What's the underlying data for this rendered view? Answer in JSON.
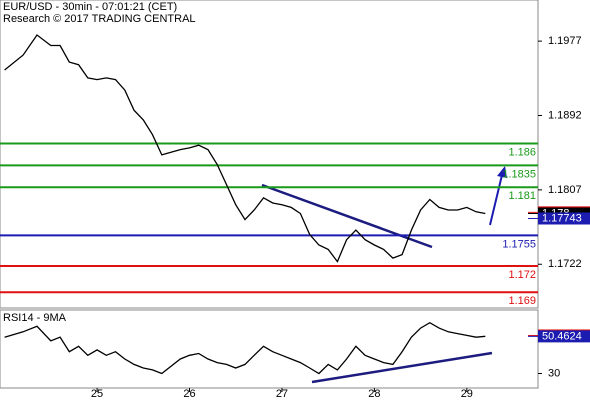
{
  "chart_data": [
    {
      "type": "line",
      "title": "EUR/USD - 30min - 07:01:21 (CET)",
      "subtitle": "Research © 2017 TRADING CENTRAL",
      "xlim": [
        23.95,
        29.77
      ],
      "ylim": [
        1.1672,
        1.2024
      ],
      "yticks": [
        1.1977,
        1.1892,
        1.1807,
        1.1722
      ],
      "x": [
        24.0,
        24.2,
        24.35,
        24.5,
        24.6,
        24.7,
        24.8,
        24.9,
        25.0,
        25.1,
        25.2,
        25.3,
        25.4,
        25.5,
        25.6,
        25.7,
        25.8,
        25.9,
        26.0,
        26.1,
        26.2,
        26.3,
        26.4,
        26.5,
        26.6,
        26.7,
        26.8,
        26.9,
        27.0,
        27.1,
        27.2,
        27.3,
        27.4,
        27.5,
        27.6,
        27.7,
        27.8,
        27.9,
        28.0,
        28.1,
        28.2,
        28.3,
        28.4,
        28.5,
        28.6,
        28.7,
        28.8,
        28.9,
        29.0,
        29.1,
        29.2
      ],
      "series": [
        {
          "color": "#000000",
          "values": [
            1.1944,
            1.1961,
            1.1984,
            1.1972,
            1.1972,
            1.1953,
            1.195,
            1.1935,
            1.1933,
            1.1935,
            1.1933,
            1.1921,
            1.1898,
            1.1887,
            1.187,
            1.1847,
            1.185,
            1.1853,
            1.1855,
            1.1858,
            1.1853,
            1.1836,
            1.1813,
            1.179,
            1.1773,
            1.1784,
            1.1798,
            1.1792,
            1.179,
            1.1787,
            1.178,
            1.1756,
            1.1744,
            1.1739,
            1.1725,
            1.175,
            1.1761,
            1.175,
            1.1744,
            1.1739,
            1.1729,
            1.1733,
            1.1761,
            1.1784,
            1.1796,
            1.1787,
            1.1784,
            1.1784,
            1.1787,
            1.1782,
            1.178
          ]
        }
      ],
      "levels": [
        {
          "value": 1.186,
          "color": "#1a9a1a"
        },
        {
          "value": 1.1835,
          "color": "#1a9a1a"
        },
        {
          "value": 1.181,
          "color": "#1a9a1a"
        },
        {
          "value": 1.1755,
          "color": "#1c1cb0"
        },
        {
          "value": 1.172,
          "color": "#e01010"
        },
        {
          "value": 1.169,
          "color": "#e01010"
        }
      ],
      "tags": [
        {
          "value": 1.17813,
          "color": "#e01010"
        },
        {
          "value": 1.178,
          "color": "#000000"
        },
        {
          "value": 1.17743,
          "color": "#1c1cb0"
        }
      ]
    },
    {
      "type": "line",
      "title": "RSI14 - 9MA",
      "xlim": [
        23.95,
        29.77
      ],
      "ylim": [
        22,
        65
      ],
      "yticks": [
        30
      ],
      "xticks": [
        25,
        26,
        27,
        28,
        29
      ],
      "x": [
        24.0,
        24.2,
        24.35,
        24.5,
        24.6,
        24.7,
        24.8,
        24.9,
        25.0,
        25.1,
        25.2,
        25.3,
        25.4,
        25.5,
        25.6,
        25.7,
        25.8,
        25.9,
        26.0,
        26.1,
        26.2,
        26.3,
        26.4,
        26.5,
        26.6,
        26.7,
        26.8,
        26.9,
        27.0,
        27.1,
        27.2,
        27.3,
        27.4,
        27.5,
        27.6,
        27.7,
        27.8,
        27.9,
        28.0,
        28.1,
        28.2,
        28.3,
        28.4,
        28.5,
        28.6,
        28.7,
        28.8,
        28.9,
        29.0,
        29.1,
        29.2
      ],
      "series": [
        {
          "color": "#000000",
          "values": [
            50,
            53,
            56,
            48,
            50,
            42,
            45,
            40,
            43,
            40,
            42,
            38,
            35,
            33,
            32,
            30,
            34,
            38,
            40,
            41,
            38,
            36,
            35,
            33,
            35,
            40,
            45,
            42,
            40,
            38,
            36,
            33,
            30,
            35,
            32,
            38,
            45,
            40,
            38,
            36,
            35,
            42,
            50,
            55,
            58,
            55,
            53,
            52,
            51,
            50,
            50.5
          ]
        }
      ],
      "tags": [
        {
          "value": 50.9645,
          "color": "#e01010"
        },
        {
          "value": 50.4624,
          "color": "#1c1cb0"
        }
      ]
    }
  ]
}
